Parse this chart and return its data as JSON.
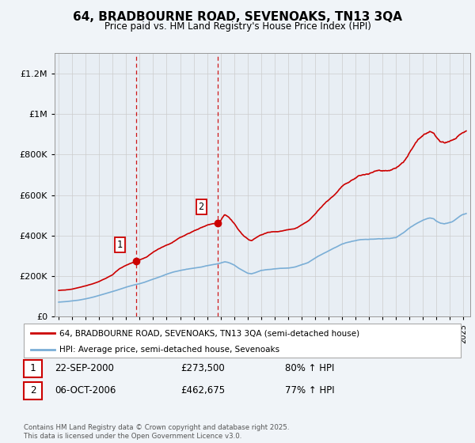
{
  "title": "64, BRADBOURNE ROAD, SEVENOAKS, TN13 3QA",
  "subtitle": "Price paid vs. HM Land Registry's House Price Index (HPI)",
  "legend_line1": "64, BRADBOURNE ROAD, SEVENOAKS, TN13 3QA (semi-detached house)",
  "legend_line2": "HPI: Average price, semi-detached house, Sevenoaks",
  "table_rows": [
    {
      "num": "1",
      "date": "22-SEP-2000",
      "price": "£273,500",
      "hpi": "80% ↑ HPI"
    },
    {
      "num": "2",
      "date": "06-OCT-2006",
      "price": "£462,675",
      "hpi": "77% ↑ HPI"
    }
  ],
  "footnote": "Contains HM Land Registry data © Crown copyright and database right 2025.\nThis data is licensed under the Open Government Licence v3.0.",
  "sale1_x": 2000.72,
  "sale1_y": 273500,
  "sale2_x": 2006.76,
  "sale2_y": 462675,
  "vline1_x": 2000.72,
  "vline2_x": 2006.76,
  "red_color": "#cc0000",
  "blue_color": "#7aaed6",
  "background_color": "#f0f4f8",
  "plot_bg_color": "#e8eef4",
  "ylim": [
    0,
    1300000
  ],
  "xlim_start": 1994.7,
  "xlim_end": 2025.5,
  "red_anchors": [
    [
      1995.0,
      130000
    ],
    [
      1995.5,
      133000
    ],
    [
      1996.0,
      138000
    ],
    [
      1996.5,
      144000
    ],
    [
      1997.0,
      152000
    ],
    [
      1997.5,
      162000
    ],
    [
      1998.0,
      174000
    ],
    [
      1998.5,
      190000
    ],
    [
      1999.0,
      208000
    ],
    [
      1999.5,
      238000
    ],
    [
      2000.0,
      255000
    ],
    [
      2000.72,
      273500
    ],
    [
      2001.0,
      282000
    ],
    [
      2001.5,
      295000
    ],
    [
      2002.0,
      318000
    ],
    [
      2002.5,
      335000
    ],
    [
      2003.0,
      355000
    ],
    [
      2003.5,
      372000
    ],
    [
      2004.0,
      392000
    ],
    [
      2004.5,
      410000
    ],
    [
      2005.0,
      422000
    ],
    [
      2005.5,
      438000
    ],
    [
      2006.0,
      450000
    ],
    [
      2006.76,
      462675
    ],
    [
      2007.0,
      475000
    ],
    [
      2007.3,
      505000
    ],
    [
      2007.6,
      490000
    ],
    [
      2008.0,
      460000
    ],
    [
      2008.3,
      430000
    ],
    [
      2008.7,
      400000
    ],
    [
      2009.0,
      385000
    ],
    [
      2009.3,
      375000
    ],
    [
      2009.6,
      390000
    ],
    [
      2010.0,
      405000
    ],
    [
      2010.5,
      415000
    ],
    [
      2011.0,
      420000
    ],
    [
      2011.5,
      425000
    ],
    [
      2012.0,
      430000
    ],
    [
      2012.5,
      438000
    ],
    [
      2013.0,
      455000
    ],
    [
      2013.5,
      475000
    ],
    [
      2014.0,
      510000
    ],
    [
      2014.5,
      545000
    ],
    [
      2015.0,
      580000
    ],
    [
      2015.5,
      610000
    ],
    [
      2016.0,
      645000
    ],
    [
      2016.5,
      665000
    ],
    [
      2017.0,
      685000
    ],
    [
      2017.5,
      700000
    ],
    [
      2018.0,
      710000
    ],
    [
      2018.5,
      715000
    ],
    [
      2019.0,
      718000
    ],
    [
      2019.5,
      722000
    ],
    [
      2020.0,
      730000
    ],
    [
      2020.5,
      760000
    ],
    [
      2021.0,
      810000
    ],
    [
      2021.5,
      855000
    ],
    [
      2022.0,
      895000
    ],
    [
      2022.5,
      920000
    ],
    [
      2022.8,
      910000
    ],
    [
      2023.0,
      885000
    ],
    [
      2023.3,
      860000
    ],
    [
      2023.6,
      855000
    ],
    [
      2024.0,
      865000
    ],
    [
      2024.3,
      875000
    ],
    [
      2024.6,
      895000
    ],
    [
      2024.9,
      915000
    ],
    [
      2025.2,
      920000
    ]
  ],
  "blue_anchors": [
    [
      1995.0,
      72000
    ],
    [
      1995.5,
      74000
    ],
    [
      1996.0,
      78000
    ],
    [
      1996.5,
      82000
    ],
    [
      1997.0,
      88000
    ],
    [
      1997.5,
      96000
    ],
    [
      1998.0,
      105000
    ],
    [
      1998.5,
      115000
    ],
    [
      1999.0,
      124000
    ],
    [
      1999.5,
      135000
    ],
    [
      2000.0,
      146000
    ],
    [
      2000.5,
      155000
    ],
    [
      2001.0,
      163000
    ],
    [
      2001.5,
      173000
    ],
    [
      2002.0,
      185000
    ],
    [
      2002.5,
      198000
    ],
    [
      2003.0,
      210000
    ],
    [
      2003.5,
      220000
    ],
    [
      2004.0,
      228000
    ],
    [
      2004.5,
      235000
    ],
    [
      2005.0,
      240000
    ],
    [
      2005.5,
      245000
    ],
    [
      2006.0,
      252000
    ],
    [
      2006.5,
      258000
    ],
    [
      2007.0,
      265000
    ],
    [
      2007.3,
      272000
    ],
    [
      2007.6,
      268000
    ],
    [
      2008.0,
      255000
    ],
    [
      2008.3,
      240000
    ],
    [
      2008.7,
      225000
    ],
    [
      2009.0,
      215000
    ],
    [
      2009.3,
      212000
    ],
    [
      2009.6,
      218000
    ],
    [
      2010.0,
      228000
    ],
    [
      2010.5,
      233000
    ],
    [
      2011.0,
      236000
    ],
    [
      2011.5,
      238000
    ],
    [
      2012.0,
      240000
    ],
    [
      2012.5,
      245000
    ],
    [
      2013.0,
      255000
    ],
    [
      2013.5,
      268000
    ],
    [
      2014.0,
      288000
    ],
    [
      2014.5,
      308000
    ],
    [
      2015.0,
      325000
    ],
    [
      2015.5,
      342000
    ],
    [
      2016.0,
      358000
    ],
    [
      2016.5,
      368000
    ],
    [
      2017.0,
      375000
    ],
    [
      2017.5,
      380000
    ],
    [
      2018.0,
      382000
    ],
    [
      2018.5,
      383000
    ],
    [
      2019.0,
      384000
    ],
    [
      2019.5,
      386000
    ],
    [
      2020.0,
      392000
    ],
    [
      2020.5,
      412000
    ],
    [
      2021.0,
      438000
    ],
    [
      2021.5,
      460000
    ],
    [
      2022.0,
      478000
    ],
    [
      2022.5,
      488000
    ],
    [
      2022.8,
      482000
    ],
    [
      2023.0,
      470000
    ],
    [
      2023.3,
      460000
    ],
    [
      2023.6,
      458000
    ],
    [
      2024.0,
      465000
    ],
    [
      2024.3,
      472000
    ],
    [
      2024.6,
      488000
    ],
    [
      2024.9,
      502000
    ],
    [
      2025.2,
      510000
    ]
  ]
}
